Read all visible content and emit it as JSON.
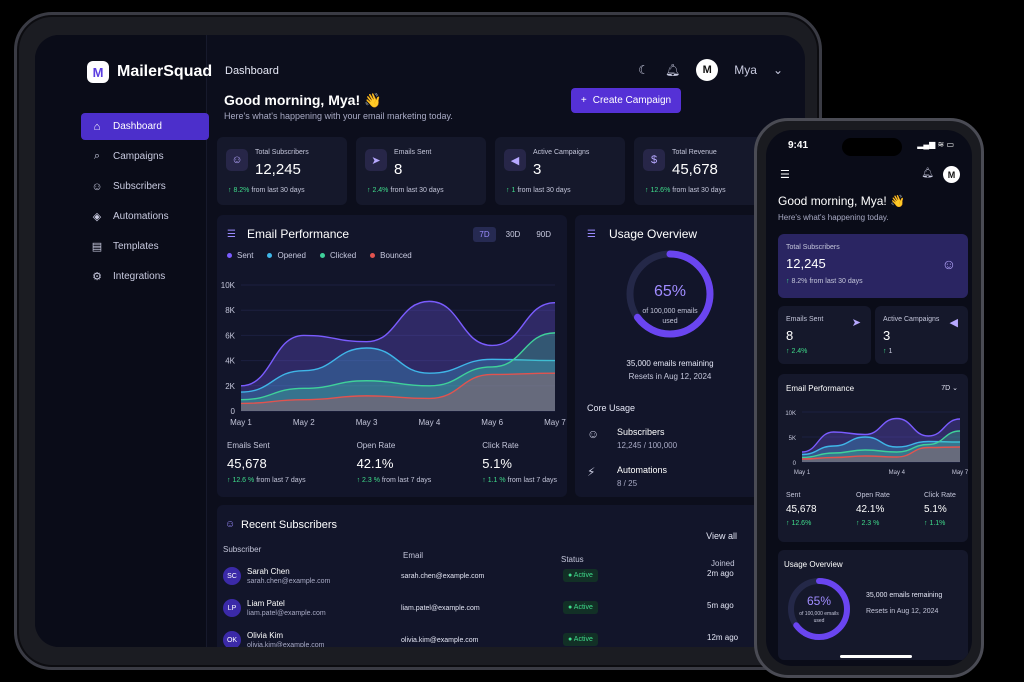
{
  "app": {
    "name": "MailerSquad"
  },
  "nav": [
    {
      "label": "Dashboard",
      "icon": "home-icon",
      "active": true
    },
    {
      "label": "Campaigns",
      "icon": "search-icon"
    },
    {
      "label": "Subscribers",
      "icon": "users-icon"
    },
    {
      "label": "Automations",
      "icon": "shield-icon"
    },
    {
      "label": "Templates",
      "icon": "template-icon"
    },
    {
      "label": "Integrations",
      "icon": "gear-icon"
    }
  ],
  "header": {
    "breadcrumb": "Dashboard",
    "user_initial": "M",
    "user_name": "Mya"
  },
  "greeting": {
    "title": "Good morning, Mya! 👋",
    "subtitle": "Here's what's happening with your email marketing today."
  },
  "create_button": "Create Campaign",
  "stats": [
    {
      "label": "Total Subscribers",
      "value": "12,245",
      "change": "8.2%",
      "period": "from last 30 days",
      "icon": "users-icon"
    },
    {
      "label": "Emails Sent",
      "value": "8",
      "change": "2.4%",
      "period": "from last 30 days",
      "icon": "send-icon"
    },
    {
      "label": "Active Campaigns",
      "value": "3",
      "change": "1",
      "period": "from last 30 days",
      "icon": "megaphone-icon"
    },
    {
      "label": "Total Revenue",
      "value": "45,678",
      "change": "12.6%",
      "period": "from last 30 days",
      "icon": "dollar-icon"
    }
  ],
  "performance": {
    "title": "Email Performance",
    "ranges": [
      "7D",
      "30D",
      "90D"
    ],
    "active_range": "7D",
    "metrics": [
      {
        "label": "Emails Sent",
        "value": "45,678",
        "change": "12.6 %",
        "period": "from last 7 days"
      },
      {
        "label": "Open Rate",
        "value": "42.1%",
        "change": "2.3 %",
        "period": "from last 7 days"
      },
      {
        "label": "Click Rate",
        "value": "5.1%",
        "change": "1.1 %",
        "period": "from last 7 days"
      }
    ]
  },
  "chart_data": {
    "type": "area",
    "x": [
      "May 1",
      "May 2",
      "May 3",
      "May 4",
      "May 6",
      "May 7"
    ],
    "y_ticks": [
      "10K",
      "8K",
      "6K",
      "4K",
      "2K",
      "0"
    ],
    "ylim": [
      0,
      10000
    ],
    "series": [
      {
        "name": "Sent",
        "color": "#7a5cff",
        "values": [
          2000,
          6000,
          5500,
          8700,
          5200,
          8600
        ]
      },
      {
        "name": "Opened",
        "color": "#3fb6e8",
        "values": [
          1500,
          3200,
          5000,
          3000,
          4100,
          4000
        ]
      },
      {
        "name": "Clicked",
        "color": "#3fd19a",
        "values": [
          900,
          1800,
          2400,
          2000,
          3500,
          6200
        ]
      },
      {
        "name": "Bounced",
        "color": "#e2534f",
        "values": [
          600,
          900,
          1200,
          1000,
          2900,
          3000
        ]
      }
    ],
    "legend": "top-left"
  },
  "usage": {
    "title": "Usage Overview",
    "percent": "65%",
    "percent_value": 65,
    "of_label": "of 100,000 emails used",
    "remaining": "35,000 emails remaining",
    "resets": "Resets in Aug 12, 2024",
    "core_title": "Core Usage",
    "core": [
      {
        "name": "Subscribers",
        "value": "12,245 / 100,000",
        "icon": "users-icon"
      },
      {
        "name": "Automations",
        "value": "8 / 25",
        "icon": "bolt-icon"
      }
    ]
  },
  "recent": {
    "title": "Recent Subscribers",
    "view_all": "View all",
    "headers": [
      "Subscriber",
      "Email",
      "Status",
      "Joined"
    ],
    "rows": [
      {
        "initials": "SC",
        "name": "Sarah Chen",
        "email": "sarah.chen@example.com",
        "status": "Active",
        "joined": "2m ago"
      },
      {
        "initials": "LP",
        "name": "Liam Patel",
        "email": "liam.patel@example.com",
        "status": "Active",
        "joined": "5m ago"
      },
      {
        "initials": "OK",
        "name": "Olivia Kim",
        "email": "olivia.kim@example.com",
        "status": "Active",
        "joined": "12m ago"
      }
    ]
  },
  "phone": {
    "time": "9:41",
    "greeting": "Good morning, Mya! 👋",
    "subtitle": "Here's what's happening today.",
    "total_label": "Total Subscribers",
    "total_value": "12,245",
    "total_change": "8.2% from last 30 days",
    "emails_label": "Emails Sent",
    "emails_value": "8",
    "emails_change": "2.4%",
    "campaigns_label": "Active Campaigns",
    "campaigns_value": "3",
    "campaigns_change": "1",
    "perf_title": "Email Performance",
    "range": "7D",
    "y_ticks": [
      "10K",
      "5K",
      "0"
    ],
    "x_ticks": [
      "May 1",
      "May 4",
      "May 7"
    ],
    "metrics": [
      {
        "label": "Sent",
        "value": "45,678",
        "change": "12.6%"
      },
      {
        "label": "Open Rate",
        "value": "42.1%",
        "change": "2.3 %"
      },
      {
        "label": "Click Rate",
        "value": "5.1%",
        "change": "1.1%"
      }
    ],
    "usage_title": "Usage Overview",
    "usage_percent": "65%",
    "usage_of": "of 100,000 emails used",
    "usage_remaining": "35,000 emails remaining",
    "usage_resets": "Resets in Aug 12, 2024"
  }
}
